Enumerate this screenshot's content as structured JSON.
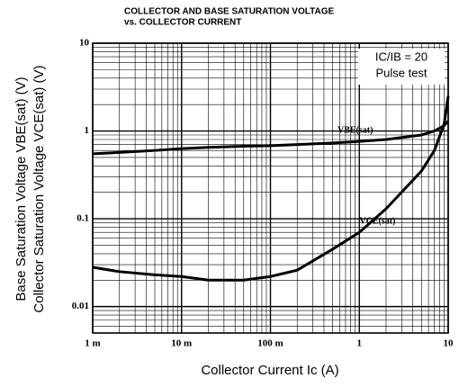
{
  "chart_data": {
    "type": "line",
    "title": "COLLECTOR AND BASE SATURATION VOLTAGE",
    "subtitle": "vs. COLLECTOR CURRENT",
    "x_label": "Collector Current Ic (A)",
    "y_label": [
      "Base Saturation Voltage VBE(sat) (V)",
      "Collector Saturation Voltage VCE(sat) (V)"
    ],
    "annotations": [
      "IC/IB = 20",
      "Pulse test"
    ],
    "x": [
      0.001,
      0.002,
      0.005,
      0.01,
      0.02,
      0.05,
      0.1,
      0.2,
      0.5,
      1,
      2,
      5,
      7,
      9,
      10
    ],
    "series": [
      {
        "name": "VBE(sat)",
        "color": "#000000",
        "values": [
          0.55,
          0.57,
          0.6,
          0.63,
          0.65,
          0.67,
          0.68,
          0.7,
          0.73,
          0.76,
          0.8,
          0.9,
          1.0,
          1.15,
          1.3
        ]
      },
      {
        "name": "VCE(sat)",
        "color": "#000000",
        "values": [
          0.028,
          0.025,
          0.023,
          0.022,
          0.02,
          0.02,
          0.022,
          0.026,
          0.045,
          0.07,
          0.13,
          0.35,
          0.6,
          1.2,
          2.5
        ]
      }
    ],
    "xlim": [
      0.001,
      10
    ],
    "ylim": [
      0.005,
      10
    ],
    "xticks": [
      {
        "value": 0.001,
        "label": "1 m"
      },
      {
        "value": 0.01,
        "label": "10 m"
      },
      {
        "value": 0.1,
        "label": "100 m"
      },
      1,
      10
    ],
    "yticks": [
      0.01,
      0.1,
      1,
      10
    ],
    "log_x": true,
    "log_y": true,
    "grid": true,
    "minor_grid": true
  }
}
